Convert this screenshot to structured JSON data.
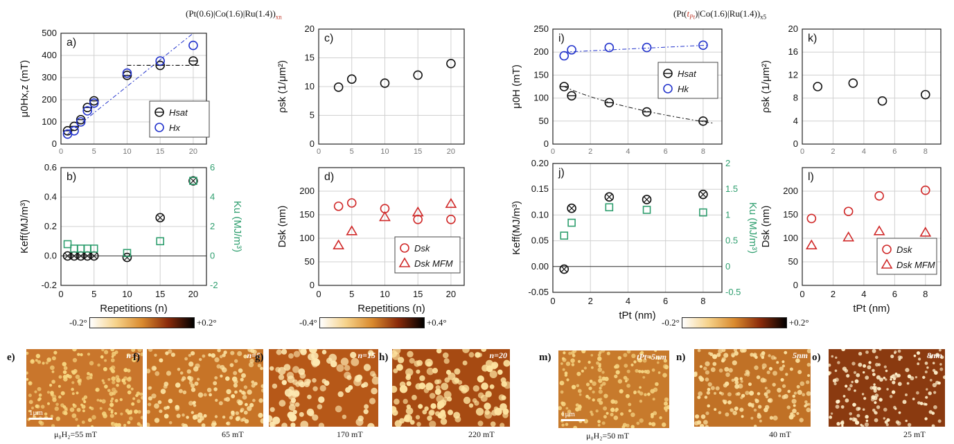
{
  "titles": {
    "left": {
      "pre": "(Pt(0.6)|Co(1.6)|Ru(1.4))",
      "sub": "xn"
    },
    "right": {
      "pre1": "(Pt(",
      "red": "t",
      "redsub": "Pt",
      "pre2": ")|Co(1.6)|Ru(1.4))",
      "sub": "x5"
    }
  },
  "colorbars": [
    {
      "min": "-0.2°",
      "max": "+0.2°"
    },
    {
      "min": "-0.4°",
      "max": "+0.4°"
    },
    {
      "min": "-0.2°",
      "max": "+0.2°"
    }
  ],
  "afm": [
    {
      "label": "e)",
      "tag": "n=3",
      "field": "μ₀H₂=55 mT",
      "scale": "1μm",
      "dot": "#f7d680",
      "bg": "#c9762c",
      "density": 200,
      "r": 2.6
    },
    {
      "label": "f)",
      "tag": "n=5",
      "field": "65 mT",
      "dot": "#fbe3a2",
      "bg": "#c77427",
      "density": 160,
      "r": 3
    },
    {
      "label": "g)",
      "tag": "n=15",
      "field": "170 mT",
      "dot": "#fde8b0",
      "bg": "#b65818",
      "density": 100,
      "r": 4.6
    },
    {
      "label": "h)",
      "tag": "n=20",
      "field": "220 mT",
      "dot": "#fde3a0",
      "bg": "#a64a12",
      "density": 130,
      "r": 4.4
    },
    {
      "label": "m)",
      "tag": "tPt=5nm",
      "field": "μ₀H₂=50 mT",
      "scale": "1μm",
      "dot": "#f6d583",
      "bg": "#c77a2c",
      "density": 170,
      "r": 2.6
    },
    {
      "label": "n)",
      "tag": "5nm",
      "field": "40 mT",
      "dot": "#fbe1a0",
      "bg": "#c07126",
      "density": 170,
      "r": 2.8
    },
    {
      "label": "o)",
      "tag": "8nm",
      "field": "25 mT",
      "dot": "#fff1cc",
      "bg": "#8a3a10",
      "density": 170,
      "r": 2.4
    }
  ],
  "chart_data": [
    {
      "id": "a",
      "type": "scatter",
      "panel_label": "a)",
      "xlim": [
        0,
        22
      ],
      "ylim": [
        0,
        500
      ],
      "yticks": [
        0,
        100,
        200,
        300,
        400,
        500
      ],
      "xticks": [
        0,
        5,
        10,
        15,
        20
      ],
      "ylabel": "μ0Hx,z (mT)",
      "series": [
        {
          "name": "Hsat",
          "color": "#111111",
          "marker": "circle-cross",
          "x": [
            1,
            2,
            3,
            4,
            5,
            10,
            15,
            20
          ],
          "y": [
            60,
            80,
            110,
            165,
            195,
            310,
            355,
            375
          ]
        },
        {
          "name": "Hx",
          "color": "#2233cc",
          "marker": "circle",
          "x": [
            1,
            2,
            3,
            4,
            5,
            10,
            15,
            20
          ],
          "y": [
            45,
            60,
            100,
            150,
            185,
            320,
            375,
            445
          ]
        }
      ]
    },
    {
      "id": "b",
      "type": "scatter",
      "panel_label": "b)",
      "xlim": [
        0,
        22
      ],
      "ylim": [
        -0.2,
        0.6
      ],
      "yticks": [
        -0.2,
        0.0,
        0.2,
        0.4,
        0.6
      ],
      "xticks": [
        0,
        5,
        10,
        15,
        20
      ],
      "y2lim": [
        -2,
        6
      ],
      "y2ticks": [
        -2,
        0,
        2,
        4,
        6
      ],
      "xlabel": "Repetitions (n)",
      "ylabel": "Keff(MJ/m³)",
      "y2label": "Ku (MJ/m³)",
      "series": [
        {
          "name": "Keff",
          "color": "#111111",
          "marker": "circle-x",
          "x": [
            1,
            2,
            3,
            4,
            5,
            10,
            15,
            20
          ],
          "y": [
            0.0,
            0.0,
            0.0,
            0.0,
            0.0,
            -0.01,
            0.26,
            0.51
          ]
        },
        {
          "name": "Ku",
          "color": "#2e9e6e",
          "marker": "square",
          "axis": "y2",
          "x": [
            1,
            2,
            3,
            4,
            5,
            10,
            15,
            20
          ],
          "y": [
            0.8,
            0.5,
            0.5,
            0.5,
            0.5,
            0.2,
            1.0,
            5.1
          ]
        }
      ]
    },
    {
      "id": "c",
      "type": "scatter",
      "panel_label": "c)",
      "xlim": [
        0,
        22
      ],
      "ylim": [
        0,
        20
      ],
      "yticks": [
        0,
        5,
        10,
        15,
        20
      ],
      "xticks": [
        0,
        5,
        10,
        15,
        20
      ],
      "ylabel": "ρsk (1/μm²)",
      "series": [
        {
          "name": "ρsk",
          "color": "#111111",
          "marker": "circle",
          "x": [
            3,
            5,
            10,
            15,
            20
          ],
          "y": [
            9.9,
            11.3,
            10.6,
            12.0,
            14.0
          ]
        }
      ]
    },
    {
      "id": "d",
      "type": "scatter",
      "panel_label": "d)",
      "xlim": [
        0,
        22
      ],
      "ylim": [
        0,
        250
      ],
      "yticks": [
        0,
        50,
        100,
        150,
        200
      ],
      "xticks": [
        0,
        5,
        10,
        15,
        20
      ],
      "xlabel": "Repetitions (n)",
      "ylabel": "Dsk (nm)",
      "series": [
        {
          "name": "Dsk",
          "color": "#d02828",
          "marker": "circle",
          "x": [
            3,
            5,
            10,
            15,
            20
          ],
          "y": [
            168,
            175,
            163,
            140,
            140
          ]
        },
        {
          "name": "Dsk MFM",
          "color": "#d02828",
          "marker": "triangle",
          "x": [
            3,
            5,
            10,
            15,
            20
          ],
          "y": [
            85,
            115,
            145,
            155,
            173
          ]
        }
      ]
    },
    {
      "id": "i",
      "type": "scatter",
      "panel_label": "i)",
      "xlim": [
        0,
        9
      ],
      "ylim": [
        0,
        250
      ],
      "yticks": [
        0,
        50,
        100,
        150,
        200,
        250
      ],
      "xticks": [
        0,
        2,
        4,
        6,
        8
      ],
      "ylabel": "μ0H (mT)",
      "series": [
        {
          "name": "Hsat",
          "color": "#111111",
          "marker": "circle-cross",
          "x": [
            0.6,
            1,
            3,
            5,
            8
          ],
          "y": [
            125,
            105,
            90,
            70,
            50
          ]
        },
        {
          "name": "Hk",
          "color": "#2233cc",
          "marker": "circle",
          "x": [
            0.6,
            1,
            3,
            5,
            8
          ],
          "y": [
            192,
            205,
            210,
            210,
            215
          ]
        }
      ]
    },
    {
      "id": "j",
      "type": "scatter",
      "panel_label": "j)",
      "xlim": [
        0,
        9
      ],
      "ylim": [
        -0.05,
        0.2
      ],
      "yticks": [
        -0.05,
        0.0,
        0.05,
        0.1,
        0.15,
        0.2
      ],
      "xticks": [
        0,
        2,
        4,
        6,
        8
      ],
      "y2lim": [
        -0.5,
        2.0
      ],
      "y2ticks": [
        -0.5,
        0.0,
        0.5,
        1.0,
        1.5,
        2.0
      ],
      "xlabel": "tPt (nm)",
      "ylabel": "Keff(MJ/m³)",
      "y2label": "Ku (MJ/m³)",
      "series": [
        {
          "name": "Keff",
          "color": "#111111",
          "marker": "circle-x",
          "x": [
            0.6,
            1,
            3,
            5,
            8
          ],
          "y": [
            -0.005,
            0.113,
            0.135,
            0.13,
            0.14
          ]
        },
        {
          "name": "Ku",
          "color": "#2e9e6e",
          "marker": "square",
          "axis": "y2",
          "x": [
            0.6,
            1,
            3,
            5,
            8
          ],
          "y": [
            0.6,
            0.85,
            1.15,
            1.1,
            1.05
          ]
        }
      ]
    },
    {
      "id": "k",
      "type": "scatter",
      "panel_label": "k)",
      "xlim": [
        0,
        9
      ],
      "ylim": [
        0,
        20
      ],
      "yticks": [
        0,
        4,
        8,
        12,
        16,
        20
      ],
      "xticks": [
        0,
        2,
        4,
        6,
        8
      ],
      "ylabel": "ρsk (1/μm²)",
      "series": [
        {
          "name": "ρsk",
          "color": "#111111",
          "marker": "circle",
          "x": [
            1,
            3.3,
            5.2,
            8
          ],
          "y": [
            10,
            10.6,
            7.5,
            8.6
          ]
        }
      ]
    },
    {
      "id": "l",
      "type": "scatter",
      "panel_label": "l)",
      "xlim": [
        0,
        9
      ],
      "ylim": [
        0,
        250
      ],
      "yticks": [
        0,
        50,
        100,
        150,
        200
      ],
      "xticks": [
        0,
        2,
        4,
        6,
        8
      ],
      "xlabel": "tPt (nm)",
      "ylabel": "Dsk (nm)",
      "series": [
        {
          "name": "Dsk",
          "color": "#d02828",
          "marker": "circle",
          "x": [
            0.6,
            3,
            5,
            8
          ],
          "y": [
            142,
            157,
            190,
            202
          ]
        },
        {
          "name": "Dsk MFM",
          "color": "#d02828",
          "marker": "triangle",
          "x": [
            0.6,
            3,
            5,
            8
          ],
          "y": [
            85,
            102,
            115,
            112
          ]
        }
      ]
    }
  ]
}
